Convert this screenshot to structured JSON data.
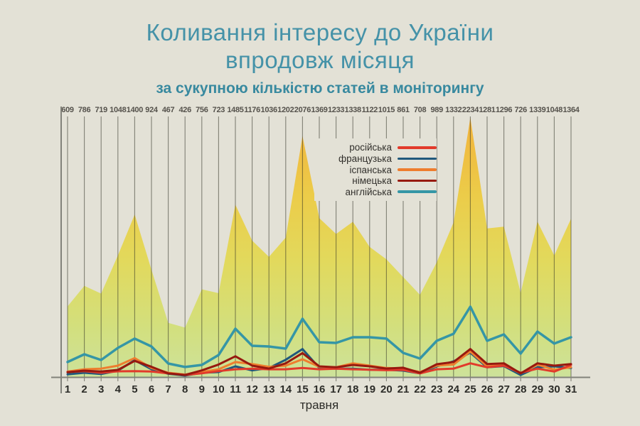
{
  "background": "#e3e1d6",
  "title": {
    "line1": "Коливання інтересу до України",
    "line2": "впродовж місяця",
    "subtitle": "за сукупною кількістю статей в моніторингу",
    "title_color": "#4592a8",
    "subtitle_color": "#38899f"
  },
  "chart_data": {
    "type": "area",
    "xlabel": "травня",
    "days": [
      1,
      2,
      3,
      4,
      5,
      6,
      7,
      8,
      9,
      10,
      11,
      12,
      13,
      14,
      15,
      16,
      17,
      18,
      19,
      20,
      21,
      22,
      23,
      24,
      25,
      26,
      27,
      28,
      29,
      30,
      31
    ],
    "totals": [
      609,
      786,
      719,
      1048,
      1400,
      924,
      467,
      426,
      756,
      723,
      1485,
      1176,
      1036,
      1202,
      2076,
      1369,
      1233,
      1338,
      1122,
      1015,
      861,
      708,
      989,
      1332,
      2234,
      1281,
      1296,
      726,
      1339,
      1048,
      1364
    ],
    "ylim": [
      0,
      2234
    ],
    "grid": "vertical-per-day",
    "legend_position": "upper-middle-right",
    "area_gradient": [
      "#f2b33c",
      "#eccc49",
      "#e2d95c",
      "#d3df7c",
      "#cde29a"
    ],
    "gridline_color": "rgba(50,50,38,0.55)",
    "axis_color": "#82827a",
    "total_label_color": "#55524c",
    "day_label_color": "#2c2c28",
    "series": [
      {
        "key": "russian",
        "name": "російська",
        "color": "#e23a2b",
        "values": [
          43,
          51,
          37,
          49,
          51,
          47,
          31,
          18,
          32,
          51,
          67,
          72,
          67,
          67,
          78,
          67,
          72,
          67,
          63,
          59,
          61,
          31,
          67,
          72,
          118,
          84,
          98,
          37,
          72,
          47,
          104
        ]
      },
      {
        "key": "french",
        "name": "французька",
        "color": "#20587c",
        "values": [
          23,
          37,
          26,
          55,
          145,
          67,
          28,
          12,
          37,
          43,
          92,
          57,
          78,
          149,
          241,
          78,
          72,
          72,
          63,
          63,
          55,
          31,
          92,
          135,
          210,
          84,
          94,
          17,
          84,
          92,
          78
        ]
      },
      {
        "key": "spanish",
        "name": "іспанська",
        "color": "#ee7d2e",
        "values": [
          47,
          67,
          72,
          98,
          163,
          78,
          37,
          21,
          43,
          67,
          129,
          112,
          88,
          98,
          153,
          88,
          84,
          118,
          98,
          78,
          73,
          43,
          98,
          108,
          220,
          92,
          104,
          32,
          108,
          63,
          84
        ]
      },
      {
        "key": "german",
        "name": "німецька",
        "color": "#97190f",
        "values": [
          41,
          55,
          47,
          61,
          139,
          88,
          31,
          18,
          57,
          108,
          179,
          98,
          73,
          118,
          206,
          92,
          84,
          104,
          92,
          73,
          80,
          37,
          110,
          129,
          241,
          112,
          118,
          31,
          118,
          98,
          112
        ]
      },
      {
        "key": "english",
        "name": "англійська",
        "color": "#3596a6",
        "values": [
          129,
          196,
          147,
          251,
          331,
          263,
          116,
          86,
          104,
          190,
          416,
          269,
          263,
          245,
          502,
          300,
          294,
          343,
          343,
          331,
          208,
          159,
          312,
          373,
          606,
          312,
          367,
          202,
          392,
          288,
          343
        ]
      }
    ]
  }
}
